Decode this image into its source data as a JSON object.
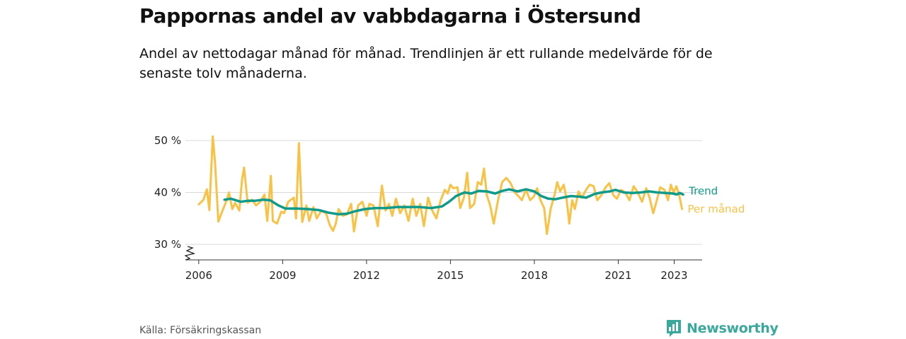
{
  "chart_data": {
    "type": "line",
    "title": "Pappornas andel av vabbdagarna i Östersund",
    "subtitle": "Andel av nettodagar månad för månad. Trendlinjen är ett rullande medelvärde för de senaste tolv månaderna.",
    "ylabel": "",
    "xlabel": "",
    "ylim": [
      28,
      52
    ],
    "xlim": [
      2005.6,
      2024.0
    ],
    "y_ticks": [
      {
        "value": 30,
        "label": "30 %"
      },
      {
        "value": 40,
        "label": "40 %"
      },
      {
        "value": 50,
        "label": "50 %"
      }
    ],
    "x_ticks": [
      {
        "value": 2006,
        "label": "2006"
      },
      {
        "value": 2009,
        "label": "2009"
      },
      {
        "value": 2012,
        "label": "2012"
      },
      {
        "value": 2015,
        "label": "2015"
      },
      {
        "value": 2018,
        "label": "2018"
      },
      {
        "value": 2021,
        "label": "2021"
      },
      {
        "value": 2023,
        "label": "2023"
      }
    ],
    "grid": true,
    "axis_break": true,
    "series": [
      {
        "name": "Per månad",
        "color": "#f8c246",
        "points": [
          [
            2006.0,
            37.7
          ],
          [
            2006.17,
            38.6
          ],
          [
            2006.29,
            40.6
          ],
          [
            2006.38,
            36.6
          ],
          [
            2006.5,
            50.8
          ],
          [
            2006.58,
            46.0
          ],
          [
            2006.7,
            34.4
          ],
          [
            2006.85,
            36.5
          ],
          [
            2007.0,
            38.5
          ],
          [
            2007.08,
            40.0
          ],
          [
            2007.2,
            36.8
          ],
          [
            2007.3,
            38.0
          ],
          [
            2007.45,
            36.5
          ],
          [
            2007.55,
            42.5
          ],
          [
            2007.62,
            44.8
          ],
          [
            2007.75,
            38.0
          ],
          [
            2007.9,
            38.6
          ],
          [
            2008.05,
            37.5
          ],
          [
            2008.2,
            38.2
          ],
          [
            2008.35,
            39.6
          ],
          [
            2008.45,
            34.5
          ],
          [
            2008.58,
            43.2
          ],
          [
            2008.65,
            34.5
          ],
          [
            2008.8,
            34.0
          ],
          [
            2008.95,
            36.3
          ],
          [
            2009.05,
            36.0
          ],
          [
            2009.2,
            38.2
          ],
          [
            2009.4,
            39.0
          ],
          [
            2009.48,
            35.0
          ],
          [
            2009.58,
            49.5
          ],
          [
            2009.7,
            34.3
          ],
          [
            2009.85,
            37.5
          ],
          [
            2009.95,
            34.5
          ],
          [
            2010.1,
            37.2
          ],
          [
            2010.22,
            35.0
          ],
          [
            2010.38,
            36.5
          ],
          [
            2010.55,
            36.0
          ],
          [
            2010.68,
            33.8
          ],
          [
            2010.8,
            32.6
          ],
          [
            2010.9,
            34.0
          ],
          [
            2011.0,
            36.8
          ],
          [
            2011.15,
            35.5
          ],
          [
            2011.3,
            35.8
          ],
          [
            2011.45,
            37.8
          ],
          [
            2011.55,
            32.5
          ],
          [
            2011.7,
            37.5
          ],
          [
            2011.85,
            38.2
          ],
          [
            2012.0,
            35.5
          ],
          [
            2012.1,
            37.8
          ],
          [
            2012.25,
            37.5
          ],
          [
            2012.4,
            33.5
          ],
          [
            2012.55,
            41.3
          ],
          [
            2012.68,
            36.5
          ],
          [
            2012.8,
            37.8
          ],
          [
            2012.92,
            35.5
          ],
          [
            2013.05,
            38.8
          ],
          [
            2013.2,
            36.0
          ],
          [
            2013.35,
            37.5
          ],
          [
            2013.5,
            34.5
          ],
          [
            2013.65,
            38.8
          ],
          [
            2013.78,
            35.5
          ],
          [
            2013.92,
            37.8
          ],
          [
            2014.05,
            33.5
          ],
          [
            2014.2,
            39.0
          ],
          [
            2014.35,
            36.5
          ],
          [
            2014.5,
            35.0
          ],
          [
            2014.65,
            38.5
          ],
          [
            2014.8,
            40.5
          ],
          [
            2014.9,
            39.8
          ],
          [
            2015.0,
            41.5
          ],
          [
            2015.1,
            40.8
          ],
          [
            2015.25,
            41.0
          ],
          [
            2015.35,
            37.0
          ],
          [
            2015.48,
            39.0
          ],
          [
            2015.6,
            43.8
          ],
          [
            2015.7,
            37.0
          ],
          [
            2015.85,
            37.8
          ],
          [
            2015.98,
            42.0
          ],
          [
            2016.1,
            41.5
          ],
          [
            2016.2,
            44.6
          ],
          [
            2016.3,
            39.5
          ],
          [
            2016.42,
            37.5
          ],
          [
            2016.55,
            34.0
          ],
          [
            2016.7,
            38.5
          ],
          [
            2016.85,
            42.0
          ],
          [
            2017.0,
            42.8
          ],
          [
            2017.15,
            41.8
          ],
          [
            2017.3,
            40.0
          ],
          [
            2017.45,
            39.2
          ],
          [
            2017.55,
            38.5
          ],
          [
            2017.7,
            40.5
          ],
          [
            2017.85,
            38.5
          ],
          [
            2017.98,
            39.2
          ],
          [
            2018.1,
            40.8
          ],
          [
            2018.22,
            38.5
          ],
          [
            2018.35,
            37.0
          ],
          [
            2018.45,
            32.0
          ],
          [
            2018.58,
            36.8
          ],
          [
            2018.72,
            39.5
          ],
          [
            2018.82,
            42.0
          ],
          [
            2018.92,
            40.2
          ],
          [
            2019.05,
            41.5
          ],
          [
            2019.15,
            38.8
          ],
          [
            2019.25,
            34.0
          ],
          [
            2019.35,
            38.5
          ],
          [
            2019.45,
            36.8
          ],
          [
            2019.58,
            40.2
          ],
          [
            2019.7,
            39.0
          ],
          [
            2019.85,
            40.5
          ],
          [
            2019.98,
            41.5
          ],
          [
            2020.12,
            41.2
          ],
          [
            2020.25,
            38.5
          ],
          [
            2020.4,
            39.5
          ],
          [
            2020.55,
            41.0
          ],
          [
            2020.68,
            41.8
          ],
          [
            2020.82,
            39.5
          ],
          [
            2020.95,
            38.8
          ],
          [
            2021.1,
            40.5
          ],
          [
            2021.25,
            40.0
          ],
          [
            2021.4,
            38.5
          ],
          [
            2021.55,
            41.2
          ],
          [
            2021.7,
            40.0
          ],
          [
            2021.85,
            38.2
          ],
          [
            2022.0,
            40.8
          ],
          [
            2022.12,
            39.0
          ],
          [
            2022.25,
            36.0
          ],
          [
            2022.38,
            38.5
          ],
          [
            2022.5,
            41.0
          ],
          [
            2022.65,
            40.5
          ],
          [
            2022.78,
            38.5
          ],
          [
            2022.88,
            41.5
          ],
          [
            2022.98,
            40.0
          ],
          [
            2023.08,
            41.2
          ],
          [
            2023.18,
            39.5
          ],
          [
            2023.28,
            36.8
          ]
        ]
      },
      {
        "name": "Trend",
        "color": "#0f9a8a",
        "points": [
          [
            2006.92,
            38.6
          ],
          [
            2007.15,
            38.8
          ],
          [
            2007.5,
            38.2
          ],
          [
            2007.75,
            38.4
          ],
          [
            2008.0,
            38.4
          ],
          [
            2008.3,
            38.6
          ],
          [
            2008.55,
            38.5
          ],
          [
            2008.85,
            37.5
          ],
          [
            2009.1,
            36.9
          ],
          [
            2009.5,
            36.9
          ],
          [
            2009.9,
            36.8
          ],
          [
            2010.3,
            36.6
          ],
          [
            2010.65,
            36.1
          ],
          [
            2011.0,
            35.8
          ],
          [
            2011.3,
            35.9
          ],
          [
            2011.6,
            36.4
          ],
          [
            2011.95,
            36.8
          ],
          [
            2012.3,
            37.0
          ],
          [
            2012.7,
            37.0
          ],
          [
            2013.1,
            37.2
          ],
          [
            2013.5,
            37.2
          ],
          [
            2013.9,
            37.2
          ],
          [
            2014.3,
            37.0
          ],
          [
            2014.7,
            37.3
          ],
          [
            2014.95,
            38.2
          ],
          [
            2015.2,
            39.3
          ],
          [
            2015.5,
            40.0
          ],
          [
            2015.75,
            39.8
          ],
          [
            2016.0,
            40.3
          ],
          [
            2016.3,
            40.2
          ],
          [
            2016.6,
            39.8
          ],
          [
            2016.85,
            40.3
          ],
          [
            2017.1,
            40.6
          ],
          [
            2017.4,
            40.2
          ],
          [
            2017.7,
            40.6
          ],
          [
            2018.0,
            40.2
          ],
          [
            2018.25,
            39.3
          ],
          [
            2018.5,
            38.8
          ],
          [
            2018.75,
            38.7
          ],
          [
            2019.0,
            39.0
          ],
          [
            2019.3,
            39.3
          ],
          [
            2019.6,
            39.2
          ],
          [
            2019.85,
            39.0
          ],
          [
            2020.15,
            39.7
          ],
          [
            2020.4,
            40.0
          ],
          [
            2020.7,
            40.2
          ],
          [
            2020.9,
            40.5
          ],
          [
            2021.2,
            40.0
          ],
          [
            2021.5,
            39.9
          ],
          [
            2021.8,
            40.0
          ],
          [
            2022.1,
            40.2
          ],
          [
            2022.4,
            40.0
          ],
          [
            2022.7,
            39.9
          ],
          [
            2022.95,
            39.8
          ],
          [
            2023.1,
            39.6
          ],
          [
            2023.2,
            39.9
          ],
          [
            2023.32,
            39.6
          ]
        ]
      }
    ],
    "source": "Källa: Försäkringskassan"
  },
  "brand": {
    "name": "Newsworthy",
    "color": "#3aa89b"
  }
}
